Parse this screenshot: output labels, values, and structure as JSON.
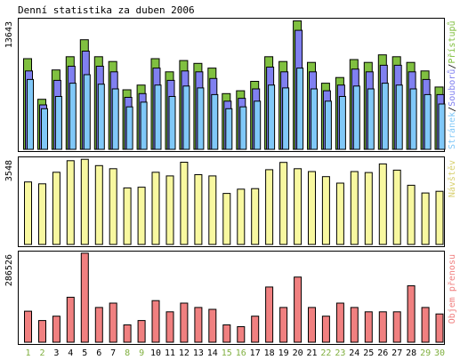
{
  "title": "Denní statistika za duben 2006",
  "colors": {
    "pristupy": "#80c040",
    "soubory": "#8080f0",
    "stranky": "#80c8f8",
    "navstevy": "#f8f8a0",
    "objem": "#f08080",
    "weekend_day": "#80b040",
    "weekday_day": "#000000",
    "frame": "#000000"
  },
  "chart_data": [
    {
      "type": "bar",
      "panel": "requests",
      "ymax_label": "13643",
      "ylim": [
        0,
        13643
      ],
      "categories": [
        "1",
        "2",
        "3",
        "4",
        "5",
        "6",
        "7",
        "8",
        "9",
        "10",
        "11",
        "12",
        "13",
        "14",
        "15",
        "16",
        "17",
        "18",
        "19",
        "20",
        "21",
        "22",
        "23",
        "24",
        "25",
        "26",
        "27",
        "28",
        "29",
        "30"
      ],
      "legend": {
        "pristupy": "Přístupů",
        "separator": "/",
        "soubory": "Souborů",
        "stranky": "Stránek"
      },
      "series": [
        {
          "name": "Přístupů",
          "values": [
            9600,
            5300,
            8400,
            9800,
            11600,
            9800,
            9300,
            6300,
            6800,
            9600,
            8200,
            9400,
            9100,
            8600,
            5900,
            6200,
            7200,
            9800,
            9300,
            13600,
            9200,
            7000,
            7600,
            9500,
            9200,
            10000,
            9800,
            9200,
            8300,
            6600
          ]
        },
        {
          "name": "Souborů",
          "values": [
            8300,
            4700,
            7300,
            8800,
            10400,
            8800,
            8200,
            5500,
            5900,
            8600,
            7300,
            8300,
            8200,
            7500,
            5100,
            5400,
            6400,
            8700,
            8200,
            12600,
            8200,
            6200,
            6800,
            8500,
            8200,
            8900,
            8900,
            8200,
            7400,
            5800
          ]
        },
        {
          "name": "Stránek",
          "values": [
            7400,
            4300,
            5600,
            7000,
            7900,
            6900,
            6400,
            4500,
            5000,
            6800,
            5600,
            6700,
            6500,
            5800,
            4300,
            4500,
            5100,
            6800,
            6500,
            8600,
            6400,
            5100,
            5600,
            6700,
            6400,
            7000,
            6800,
            6400,
            5800,
            4800
          ]
        }
      ]
    },
    {
      "type": "bar",
      "panel": "visits",
      "ymax_label": "3548",
      "ylim": [
        0,
        3548
      ],
      "categories": [
        "1",
        "2",
        "3",
        "4",
        "5",
        "6",
        "7",
        "8",
        "9",
        "10",
        "11",
        "12",
        "13",
        "14",
        "15",
        "16",
        "17",
        "18",
        "19",
        "20",
        "21",
        "22",
        "23",
        "24",
        "25",
        "26",
        "27",
        "28",
        "29",
        "30"
      ],
      "legend": {
        "navstevy": "Návštěv"
      },
      "series": [
        {
          "name": "Návštěv",
          "values": [
            2600,
            2520,
            3000,
            3480,
            3540,
            3280,
            3150,
            2350,
            2380,
            3000,
            2850,
            3420,
            2900,
            2850,
            2120,
            2300,
            2320,
            3110,
            3410,
            3150,
            3030,
            2820,
            2550,
            3030,
            2990,
            3350,
            3090,
            2460,
            2140,
            2210
          ]
        }
      ]
    },
    {
      "type": "bar",
      "panel": "traffic",
      "ymax_label": "286526",
      "ylim": [
        0,
        286526
      ],
      "categories": [
        "1",
        "2",
        "3",
        "4",
        "5",
        "6",
        "7",
        "8",
        "9",
        "10",
        "11",
        "12",
        "13",
        "14",
        "15",
        "16",
        "17",
        "18",
        "19",
        "20",
        "21",
        "22",
        "23",
        "24",
        "25",
        "26",
        "27",
        "28",
        "29",
        "30"
      ],
      "legend": {
        "objem": "Objem přenosu"
      },
      "series": [
        {
          "name": "Objem přenosu",
          "values": [
            100000,
            70000,
            84000,
            145000,
            287000,
            112000,
            126000,
            56000,
            70000,
            134000,
            98000,
            126000,
            112000,
            106000,
            56000,
            50000,
            84000,
            178000,
            112000,
            210000,
            112000,
            84000,
            126000,
            112000,
            98000,
            98000,
            98000,
            182000,
            112000,
            91000
          ]
        }
      ]
    }
  ],
  "x_axis": {
    "labels": [
      "1",
      "2",
      "3",
      "4",
      "5",
      "6",
      "7",
      "8",
      "9",
      "10",
      "11",
      "12",
      "13",
      "14",
      "15",
      "16",
      "17",
      "18",
      "19",
      "20",
      "21",
      "22",
      "23",
      "24",
      "25",
      "26",
      "27",
      "28",
      "29",
      "30"
    ],
    "weekend_days": [
      1,
      2,
      8,
      9,
      15,
      16,
      22,
      23,
      29,
      30
    ]
  }
}
